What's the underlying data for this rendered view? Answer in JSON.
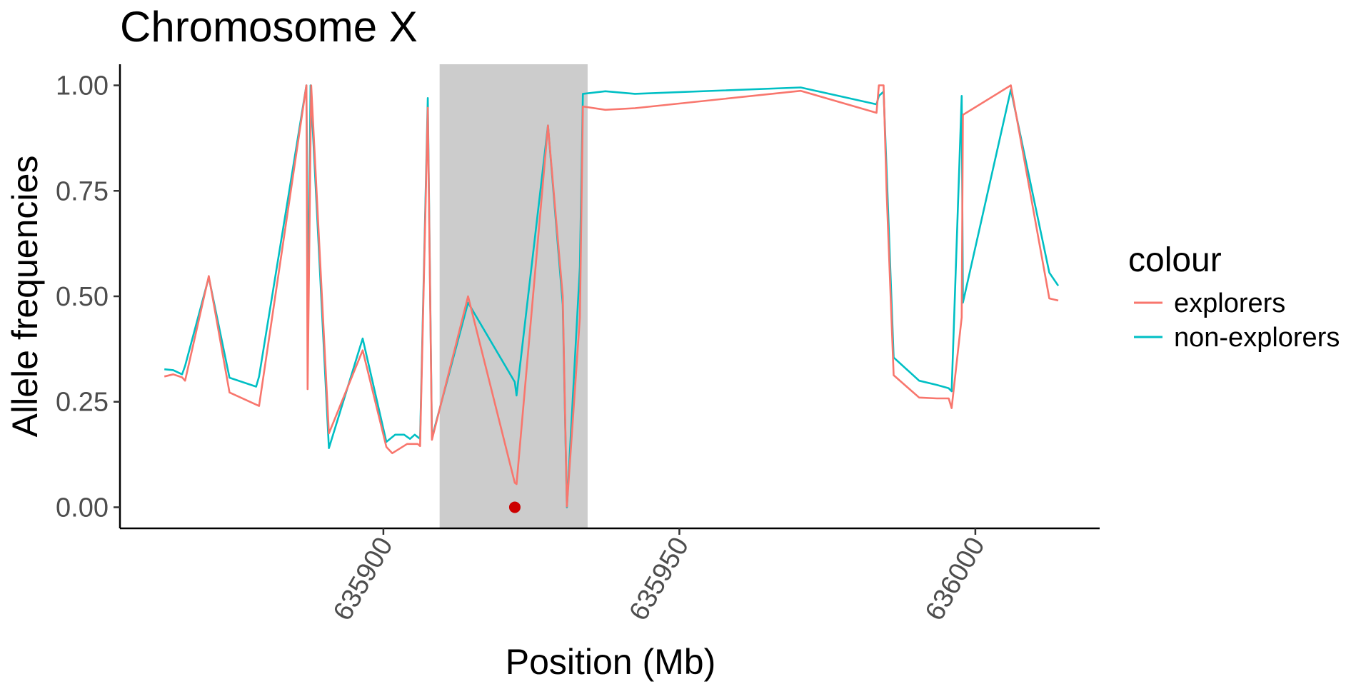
{
  "chart_data": {
    "type": "line",
    "title": "Chromosome X",
    "xlabel": "Position (Mb)",
    "ylabel": "Allele frequencies",
    "xlim": [
      635855.5,
      636021
    ],
    "ylim": [
      -0.05,
      1.05
    ],
    "x_ticks": [
      635900,
      635950,
      636000
    ],
    "x_tick_labels": [
      "635900",
      "635950",
      "636000"
    ],
    "y_ticks": [
      0,
      0.25,
      0.5,
      0.75,
      1
    ],
    "y_tick_labels": [
      "0.00",
      "0.25",
      "0.50",
      "0.75",
      "1.00"
    ],
    "grid": false,
    "highlight_region": {
      "x": [
        635909.5,
        635934.5
      ],
      "color": "#cccccc"
    },
    "marker": {
      "x": 635922.2,
      "y": 0.0,
      "color": "#cc0000"
    },
    "legend": {
      "title": "colour",
      "position": "right",
      "entries": [
        {
          "label": "explorers",
          "color": "#F8766D"
        },
        {
          "label": "non-explorers",
          "color": "#00BFC4"
        }
      ]
    },
    "series": [
      {
        "name": "explorers",
        "color": "#F8766D",
        "x": [
          635863,
          635864.5,
          635866,
          635866.5,
          635870.5,
          635874,
          635879,
          635887,
          635887.2,
          635887.8,
          635890.8,
          635896.5,
          635900.5,
          635901.5,
          635904,
          635905.8,
          635906.2,
          635907.5,
          635908.2,
          635914.3,
          635922.2,
          635922.5,
          635927.8,
          635930.3,
          635931,
          635933.2,
          635933.7,
          635937.5,
          635942.5,
          635970.5,
          635983.3,
          635983.7,
          635984.5,
          635985,
          635986.2,
          635990.5,
          635993.5,
          635995.5,
          635996,
          635997.7,
          635997.9,
          636006,
          636012.5,
          636014
        ]
      },
      {
        "name": "non-explorers",
        "color": "#00BFC4",
        "x": [
          635863,
          635864.5,
          635866,
          635866.5,
          635870.5,
          635874,
          635878.5,
          635879,
          635887,
          635887.3,
          635887.7,
          635890.8,
          635896.5,
          635900.5,
          635902,
          635903.5,
          635904.5,
          635905.3,
          635906.2,
          635907.5,
          635908.2,
          635914.3,
          635922.2,
          635922.5,
          635927.8,
          635930.3,
          635931,
          635933.2,
          635933.7,
          635937.5,
          635942.5,
          635970.5,
          635983.3,
          635983.7,
          635984.5,
          635985,
          635986.2,
          635990.5,
          635993.5,
          635995.5,
          635996,
          635997.7,
          635997.9,
          636006,
          636012.5,
          636014
        ]
      }
    ]
  }
}
